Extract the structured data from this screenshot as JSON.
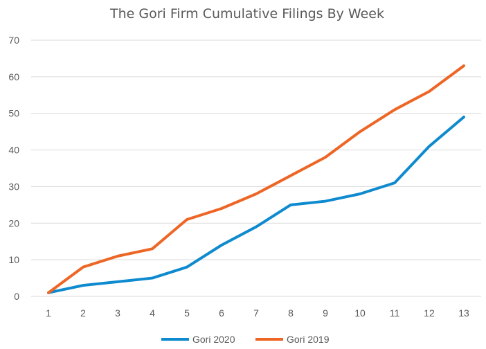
{
  "chart_data": {
    "type": "line",
    "title": "The Gori Firm Cumulative Filings By Week",
    "xlabel": "",
    "ylabel": "",
    "x": [
      "1",
      "2",
      "3",
      "4",
      "5",
      "6",
      "7",
      "8",
      "9",
      "10",
      "11",
      "12",
      "13"
    ],
    "ylim": [
      0,
      70
    ],
    "yticks": [
      0,
      10,
      20,
      30,
      40,
      50,
      60,
      70
    ],
    "grid": true,
    "legend_position": "bottom",
    "series": [
      {
        "name": "Gori 2020",
        "color": "#0e8ace",
        "values": [
          1,
          3,
          4,
          5,
          8,
          14,
          19,
          25,
          26,
          28,
          31,
          41,
          49
        ]
      },
      {
        "name": "Gori 2019",
        "color": "#ed6625",
        "values": [
          1,
          8,
          11,
          13,
          21,
          24,
          28,
          33,
          38,
          45,
          51,
          56,
          63
        ]
      }
    ]
  }
}
